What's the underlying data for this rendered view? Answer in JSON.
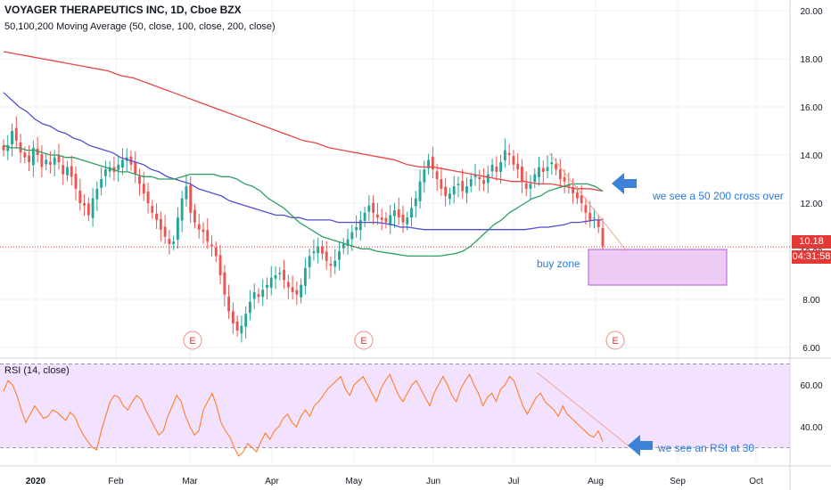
{
  "header": {
    "title": "VOYAGER THERAPEUTICS INC, 1D, Cboe BZX",
    "ma_legend": "50,100,200 Moving Average (50, close, 100, close, 200, close)",
    "rsi_legend": "RSI (14, close)"
  },
  "price_badges": {
    "last_price": "10.18",
    "countdown": "04:31:58"
  },
  "annotations": {
    "cross": "we see a 50 200 cross over",
    "buy_zone": "buy zone",
    "rsi": "we see an RSI at 30"
  },
  "earnings_marker": "E",
  "colors": {
    "up": "#26a69a",
    "down": "#ef5350",
    "ma50": "#2e9e61",
    "ma100": "#4f4fd0",
    "ma200": "#e84545",
    "rsi": "#ff7f27",
    "rsi_band": "#f2e2ff",
    "buy_zone": "#eecbf5",
    "arrow": "#3b82d8",
    "badge": "#e53935",
    "axis_text": "#131722"
  },
  "chart_data": [
    {
      "type": "candlestick",
      "title": "VOYAGER THERAPEUTICS INC, 1D, Cboe BZX",
      "x_ticks": [
        "2020",
        "Feb",
        "Mar",
        "Apr",
        "May",
        "Jun",
        "Jul",
        "Aug",
        "Sep",
        "Oct"
      ],
      "y_ticks": [
        "20.00",
        "18.00",
        "16.00",
        "14.00",
        "12.00",
        "10.00",
        "8.00",
        "6.00"
      ],
      "ylim": [
        5.5,
        20.2
      ],
      "last_price": 10.18,
      "close": [
        14.2,
        14.4,
        15.0,
        14.6,
        14.1,
        13.9,
        13.7,
        14.3,
        14.0,
        13.5,
        13.8,
        13.6,
        13.9,
        13.7,
        13.2,
        13.5,
        13.1,
        12.6,
        12.0,
        11.9,
        11.5,
        12.2,
        12.6,
        13.0,
        13.4,
        13.5,
        13.3,
        13.6,
        13.8,
        13.9,
        13.6,
        13.2,
        12.8,
        12.4,
        12.0,
        11.6,
        11.3,
        10.9,
        10.6,
        10.3,
        10.4,
        11.4,
        12.2,
        12.7,
        11.6,
        11.2,
        10.9,
        10.8,
        10.4,
        10.2,
        9.8,
        9.0,
        8.2,
        7.5,
        7.0,
        6.7,
        6.9,
        7.4,
        7.9,
        8.3,
        8.1,
        8.4,
        8.6,
        8.9,
        9.0,
        9.1,
        8.8,
        8.5,
        8.3,
        8.2,
        8.6,
        9.3,
        9.8,
        10.0,
        10.2,
        9.9,
        9.6,
        9.4,
        9.6,
        10.0,
        10.3,
        10.5,
        10.8,
        11.0,
        11.3,
        11.6,
        11.9,
        11.6,
        11.4,
        11.3,
        11.2,
        11.5,
        11.7,
        11.4,
        11.2,
        11.4,
        11.8,
        12.2,
        12.9,
        13.4,
        13.8,
        13.4,
        13.0,
        12.6,
        12.3,
        12.4,
        12.7,
        12.8,
        12.5,
        12.7,
        13.0,
        13.2,
        13.0,
        12.8,
        13.2,
        13.6,
        13.3,
        13.7,
        14.2,
        14.0,
        13.6,
        13.4,
        12.9,
        12.6,
        12.8,
        13.2,
        13.5,
        13.3,
        13.5,
        13.7,
        13.4,
        13.0,
        12.9,
        12.7,
        12.4,
        12.2,
        12.0,
        11.6,
        11.3,
        11.4,
        11.0,
        10.2
      ],
      "ma50": [
        14.4,
        14.3,
        14.3,
        14.2,
        14.2,
        14.1,
        14.0,
        14.0,
        13.9,
        13.9,
        13.8,
        13.7,
        13.6,
        13.5,
        13.4,
        13.3,
        13.3,
        13.2,
        13.1,
        13.1,
        13.0,
        13.0,
        13.0,
        13.1,
        13.2,
        13.2,
        13.2,
        13.2,
        13.1,
        13.1,
        13.0,
        12.8,
        12.7,
        12.5,
        12.2,
        12.0,
        11.8,
        11.5,
        11.2,
        11.0,
        10.8,
        10.6,
        10.5,
        10.4,
        10.3,
        10.2,
        10.1,
        10.1,
        10.0,
        9.95,
        9.9,
        9.85,
        9.8,
        9.8,
        9.8,
        9.8,
        9.8,
        9.85,
        9.9,
        10.0,
        10.2,
        10.5,
        10.8,
        11.1,
        11.3,
        11.6,
        11.8,
        12.0,
        12.2,
        12.3,
        12.5,
        12.6,
        12.7,
        12.8,
        12.8,
        12.8,
        12.7,
        12.5
      ],
      "ma100": [
        16.6,
        16.3,
        16.0,
        15.8,
        15.5,
        15.3,
        15.2,
        15.0,
        14.9,
        14.7,
        14.6,
        14.4,
        14.3,
        14.2,
        14.1,
        13.9,
        13.8,
        13.7,
        13.6,
        13.4,
        13.3,
        13.1,
        13.0,
        12.9,
        12.8,
        12.6,
        12.5,
        12.4,
        12.3,
        12.1,
        12.0,
        11.9,
        11.8,
        11.7,
        11.6,
        11.5,
        11.5,
        11.4,
        11.4,
        11.3,
        11.3,
        11.3,
        11.3,
        11.2,
        11.2,
        11.2,
        11.2,
        11.2,
        11.2,
        11.15,
        11.1,
        11.0,
        11.0,
        10.95,
        10.9,
        10.9,
        10.9,
        10.9,
        10.9,
        10.9,
        10.9,
        10.9,
        10.9,
        10.9,
        10.9,
        10.9,
        10.9,
        10.9,
        10.95,
        11.0,
        11.0,
        11.05,
        11.1,
        11.2,
        11.2,
        11.25,
        11.3,
        11.3
      ],
      "ma200": [
        18.3,
        18.2,
        18.1,
        18.0,
        17.9,
        17.8,
        17.7,
        17.6,
        17.5,
        17.3,
        17.2,
        17.0,
        16.8,
        16.6,
        16.4,
        16.2,
        16.0,
        15.8,
        15.6,
        15.4,
        15.2,
        15.0,
        14.8,
        14.6,
        14.5,
        14.3,
        14.2,
        14.1,
        14.0,
        13.9,
        13.8,
        13.6,
        13.5,
        13.5,
        13.4,
        13.3,
        13.2,
        13.1,
        13.0,
        12.9,
        12.9,
        12.8,
        12.8,
        12.7,
        12.6,
        12.6,
        12.5
      ],
      "earnings_events": [
        "Mar",
        "May",
        "Aug"
      ]
    },
    {
      "type": "line",
      "title": "RSI (14, close)",
      "y_ticks": [
        "60.00",
        "40.00"
      ],
      "ylim": [
        22,
        74
      ],
      "band": [
        30,
        70
      ],
      "values": [
        57,
        62,
        60,
        55,
        48,
        42,
        46,
        50,
        47,
        44,
        45,
        48,
        47,
        45,
        43,
        47,
        45,
        40,
        36,
        33,
        30,
        29,
        38,
        45,
        52,
        55,
        54,
        50,
        48,
        52,
        55,
        53,
        48,
        44,
        40,
        36,
        38,
        45,
        50,
        55,
        52,
        45,
        40,
        36,
        38,
        48,
        52,
        56,
        50,
        42,
        38,
        35,
        30,
        26,
        28,
        32,
        30,
        28,
        33,
        37,
        34,
        38,
        40,
        44,
        46,
        42,
        40,
        45,
        48,
        45,
        50,
        52,
        55,
        58,
        60,
        62,
        64,
        58,
        55,
        60,
        62,
        64,
        60,
        56,
        52,
        58,
        62,
        65,
        60,
        55,
        52,
        56,
        60,
        62,
        58,
        54,
        50,
        56,
        60,
        64,
        60,
        55,
        52,
        58,
        62,
        65,
        60,
        56,
        50,
        54,
        56,
        52,
        58,
        60,
        64,
        62,
        56,
        50,
        46,
        50,
        54,
        56,
        52,
        50,
        48,
        45,
        50,
        46,
        44,
        42,
        40,
        38,
        36,
        35,
        38,
        33
      ]
    }
  ]
}
